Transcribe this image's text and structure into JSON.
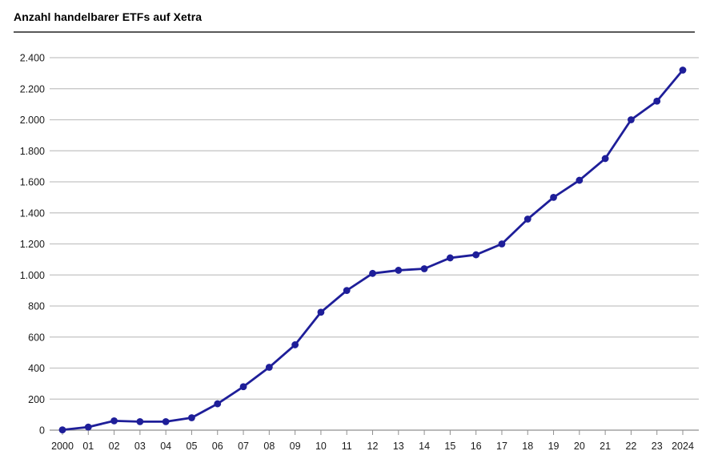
{
  "header": {
    "title": "Anzahl handelbarer ETFs auf Xetra"
  },
  "chart_data": {
    "type": "line",
    "title": "Anzahl handelbarer ETFs auf Xetra",
    "xlabel": "",
    "ylabel": "",
    "categories": [
      "2000",
      "01",
      "02",
      "03",
      "04",
      "05",
      "06",
      "07",
      "08",
      "09",
      "10",
      "11",
      "12",
      "13",
      "14",
      "15",
      "16",
      "17",
      "18",
      "19",
      "20",
      "21",
      "22",
      "23",
      "2024"
    ],
    "values": [
      2,
      20,
      60,
      55,
      55,
      80,
      170,
      280,
      405,
      550,
      760,
      900,
      1010,
      1030,
      1040,
      1110,
      1130,
      1200,
      1360,
      1500,
      1610,
      1750,
      2000,
      2120,
      2320
    ],
    "ylim": [
      0,
      2400
    ],
    "ytick_step": 200,
    "ytick_labels": [
      "0",
      "200",
      "400",
      "600",
      "800",
      "1.000",
      "1.200",
      "1.400",
      "1.600",
      "1.800",
      "2.000",
      "2.200",
      "2.400"
    ],
    "grid": "horizontal",
    "legend": "none",
    "marker": "circle",
    "colors": {
      "line": "#1e1e99",
      "marker": "#1e1e99",
      "gridline": "#c3c3c3",
      "axis": "#8f8f8f",
      "tick": "#8f8f8f",
      "label": "#1a1a1a",
      "title": "#000000",
      "title_rule": "#595959"
    }
  }
}
